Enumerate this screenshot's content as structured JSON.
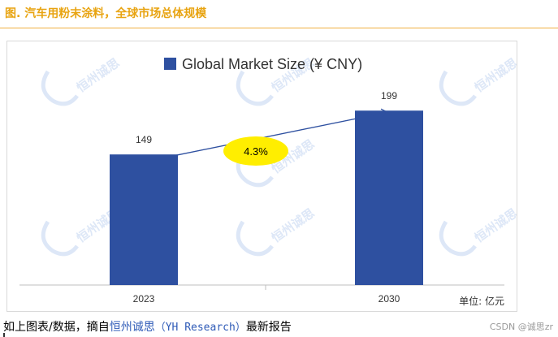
{
  "page": {
    "figure_title": "图. 汽车用粉末涂料，全球市场总体规模",
    "footer_prefix": "如上图表/数据，摘自",
    "footer_brand": "恒州诚思",
    "footer_research": "（YH Research）",
    "footer_suffix": "最新报告",
    "csdn_watermark": "CSDN @诚思zr",
    "watermark_text": "恒州诚思"
  },
  "chart_data": {
    "type": "bar",
    "title": "Global Market Size (¥ CNY)",
    "legend": "Global Market Size (¥ CNY)",
    "categories": [
      "2023",
      "2030"
    ],
    "values": [
      149,
      199
    ],
    "value_labels": [
      "149",
      "199"
    ],
    "cagr_label": "4.3%",
    "unit_label": "单位: 亿元",
    "ylim": [
      0,
      220
    ],
    "grid": false,
    "legend_position": "top-center",
    "colors": {
      "bar": "#2e50a0",
      "trend_line": "#2e50a0",
      "cagr_bubble": "#ffee00",
      "title_orange": "#e8a412"
    }
  }
}
